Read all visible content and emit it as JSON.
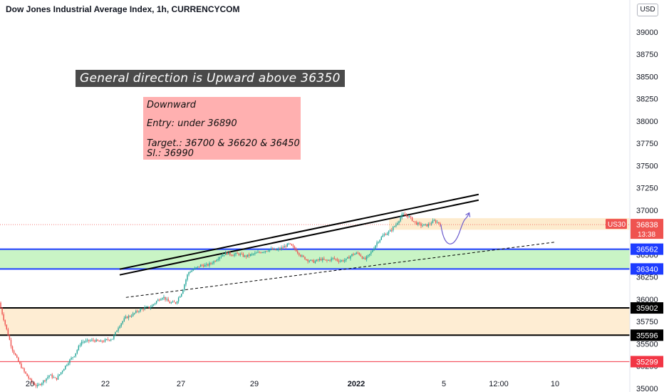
{
  "header": {
    "title": "Dow Jones Industrial Average Index, 1h, CURRENCYCOM",
    "currency_button": "USD"
  },
  "annotations": {
    "banner": "General direction is Upward above 36350",
    "note": {
      "line1": "Downward",
      "line2": "Entry: under  36890",
      "line3": "Target.: 36700 & 36620 & 36450",
      "line4": "Sl.: 36990"
    }
  },
  "price_marker": {
    "symbol": "US30",
    "price": "36838",
    "countdown": "13:38"
  },
  "colors": {
    "up": "#26a69a",
    "down": "#ef5350",
    "support_zone": "#b7f0b1",
    "resistance_zone": "#fde7c4",
    "blue_line": "#1e3cff",
    "red_line": "#f23645",
    "projection": "#6a5acd"
  },
  "chart_data": {
    "type": "candlestick",
    "title": "Dow Jones Industrial Average Index, 1h, CURRENCYCOM",
    "ylim": [
      34990,
      39120
    ],
    "y_ticks": [
      35000,
      35250,
      35500,
      35750,
      36000,
      36250,
      36500,
      36750,
      37000,
      37250,
      37500,
      37750,
      38000,
      38250,
      38500,
      38750,
      39000
    ],
    "x_ticks": [
      "20",
      "22",
      "27",
      "29",
      "2022",
      "5",
      "12:00",
      "10"
    ],
    "price_levels": [
      {
        "label": "36562",
        "value": 36562,
        "color": "#1e3cff"
      },
      {
        "label": "36340",
        "value": 36340,
        "color": "#1e3cff"
      },
      {
        "label": "35902",
        "value": 35902,
        "color": "#000000"
      },
      {
        "label": "35596",
        "value": 35596,
        "color": "#000000"
      },
      {
        "label": "35299",
        "value": 35299,
        "color": "#f23645"
      }
    ],
    "zones": [
      {
        "name": "support",
        "from": 36340,
        "to": 36562
      },
      {
        "name": "resistance",
        "from": 35596,
        "to": 35902
      },
      {
        "name": "sell-entry",
        "from": 36780,
        "to": 36910
      }
    ],
    "trendline_upper": {
      "from": [
        0.19,
        36305
      ],
      "to": [
        0.76,
        37145
      ]
    },
    "trendline_dashed": {
      "from": [
        0.2,
        36020
      ],
      "to": [
        0.88,
        36640
      ]
    },
    "path": [
      [
        0.0,
        35960
      ],
      [
        0.01,
        35700
      ],
      [
        0.02,
        35450
      ],
      [
        0.03,
        35300
      ],
      [
        0.04,
        35180
      ],
      [
        0.05,
        35080
      ],
      [
        0.06,
        35020
      ],
      [
        0.07,
        35080
      ],
      [
        0.08,
        35150
      ],
      [
        0.09,
        35100
      ],
      [
        0.1,
        35200
      ],
      [
        0.11,
        35300
      ],
      [
        0.12,
        35380
      ],
      [
        0.13,
        35520
      ],
      [
        0.14,
        35530
      ],
      [
        0.15,
        35540
      ],
      [
        0.16,
        35520
      ],
      [
        0.17,
        35540
      ],
      [
        0.18,
        35560
      ],
      [
        0.19,
        35700
      ],
      [
        0.2,
        35790
      ],
      [
        0.21,
        35820
      ],
      [
        0.22,
        35870
      ],
      [
        0.23,
        35900
      ],
      [
        0.24,
        35910
      ],
      [
        0.25,
        35980
      ],
      [
        0.26,
        36030
      ],
      [
        0.27,
        35960
      ],
      [
        0.28,
        35960
      ],
      [
        0.29,
        36080
      ],
      [
        0.3,
        36300
      ],
      [
        0.31,
        36340
      ],
      [
        0.32,
        36380
      ],
      [
        0.33,
        36380
      ],
      [
        0.34,
        36420
      ],
      [
        0.35,
        36480
      ],
      [
        0.36,
        36520
      ],
      [
        0.37,
        36500
      ],
      [
        0.38,
        36510
      ],
      [
        0.39,
        36480
      ],
      [
        0.4,
        36500
      ],
      [
        0.41,
        36520
      ],
      [
        0.42,
        36540
      ],
      [
        0.43,
        36560
      ],
      [
        0.44,
        36550
      ],
      [
        0.45,
        36580
      ],
      [
        0.46,
        36620
      ],
      [
        0.47,
        36560
      ],
      [
        0.48,
        36480
      ],
      [
        0.49,
        36440
      ],
      [
        0.5,
        36420
      ],
      [
        0.51,
        36450
      ],
      [
        0.52,
        36430
      ],
      [
        0.53,
        36460
      ],
      [
        0.54,
        36430
      ],
      [
        0.55,
        36440
      ],
      [
        0.56,
        36500
      ],
      [
        0.57,
        36520
      ],
      [
        0.58,
        36440
      ],
      [
        0.59,
        36520
      ],
      [
        0.6,
        36640
      ],
      [
        0.61,
        36720
      ],
      [
        0.62,
        36760
      ],
      [
        0.63,
        36840
      ],
      [
        0.64,
        36950
      ],
      [
        0.65,
        36930
      ],
      [
        0.66,
        36860
      ],
      [
        0.67,
        36830
      ],
      [
        0.68,
        36830
      ],
      [
        0.69,
        36880
      ],
      [
        0.7,
        36850
      ]
    ],
    "projection": [
      [
        0.7,
        36840
      ],
      [
        0.713,
        36660
      ],
      [
        0.73,
        36760
      ],
      [
        0.745,
        36970
      ]
    ],
    "last_price": 36838
  }
}
